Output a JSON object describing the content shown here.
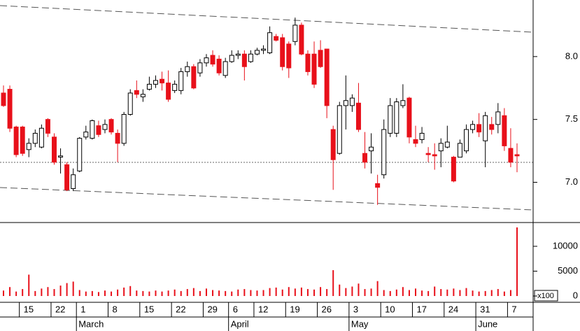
{
  "chart_data": [
    {
      "type": "candlestick",
      "color_up": "#ffffff",
      "color_down": "#e8101a",
      "categories": [
        null,
        null,
        null,
        "15",
        null,
        null,
        null,
        null,
        "22",
        null,
        null,
        null,
        "1",
        null,
        null,
        null,
        null,
        "8",
        null,
        null,
        null,
        null,
        "15",
        null,
        null,
        null,
        null,
        "22",
        null,
        null,
        null,
        null,
        "29",
        null,
        null,
        null,
        "6",
        null,
        null,
        null,
        "12",
        null,
        null,
        null,
        null,
        "19",
        null,
        null,
        null,
        null,
        "26",
        null,
        null,
        null,
        null,
        "3",
        null,
        null,
        null,
        null,
        "10",
        null,
        null,
        null,
        null,
        "17",
        null,
        null,
        null,
        null,
        "24",
        null,
        null,
        null,
        null,
        "31",
        null,
        null,
        null,
        null,
        "7",
        null
      ],
      "months": [
        null,
        null,
        null,
        null,
        null,
        null,
        null,
        null,
        null,
        null,
        null,
        null,
        "March",
        null,
        null,
        null,
        null,
        null,
        null,
        null,
        null,
        null,
        null,
        null,
        null,
        null,
        null,
        null,
        null,
        null,
        null,
        null,
        null,
        null,
        null,
        null,
        "April",
        null,
        null,
        null,
        null,
        null,
        null,
        null,
        null,
        null,
        null,
        null,
        null,
        null,
        null,
        null,
        null,
        null,
        null,
        "May",
        null,
        null,
        null,
        null,
        null,
        null,
        null,
        null,
        null,
        null,
        null,
        null,
        null,
        null,
        null,
        null,
        null,
        null,
        null,
        "June",
        null,
        null,
        null,
        null,
        null,
        null
      ],
      "open": [
        7.71,
        7.74,
        7.44,
        7.44,
        7.26,
        7.31,
        7.28,
        7.5,
        7.36,
        7.2,
        7.14,
        6.95,
        7.09,
        7.36,
        7.35,
        7.45,
        7.42,
        7.5,
        7.39,
        7.31,
        7.54,
        7.73,
        7.68,
        7.74,
        7.78,
        7.82,
        7.79,
        7.73,
        7.73,
        7.88,
        7.92,
        7.87,
        7.95,
        8.01,
        7.98,
        7.85,
        7.96,
        8.01,
        8.02,
        7.96,
        8.02,
        8.05,
        8.03,
        8.16,
        8.15,
        8.1,
        8.12,
        8.25,
        8.02,
        8.02,
        8.05,
        8.06,
        7.42,
        7.23,
        7.61,
        7.61,
        7.63,
        7.23,
        7.25,
        6.99,
        7.06,
        7.39,
        7.39,
        7.61,
        7.67,
        7.34,
        7.34,
        7.23,
        7.22,
        7.25,
        7.28,
        7.2,
        7.2,
        7.25,
        7.42,
        7.46,
        7.33,
        7.46,
        7.46,
        7.53,
        7.27,
        7.22
      ],
      "high": [
        7.77,
        7.77,
        7.45,
        7.45,
        7.35,
        7.42,
        7.46,
        7.51,
        7.39,
        7.27,
        7.16,
        7.11,
        7.36,
        7.45,
        7.5,
        7.49,
        7.5,
        7.51,
        7.42,
        7.56,
        7.74,
        7.81,
        7.74,
        7.84,
        7.85,
        7.88,
        7.89,
        7.81,
        7.91,
        7.96,
        7.94,
        7.98,
        8.02,
        8.05,
        8.01,
        7.99,
        8.05,
        8.05,
        8.05,
        8.05,
        8.07,
        8.09,
        8.24,
        8.18,
        8.18,
        8.12,
        8.31,
        8.27,
        8.05,
        8.12,
        8.13,
        8.06,
        7.45,
        7.64,
        7.85,
        7.7,
        7.79,
        7.4,
        7.39,
        7.06,
        7.5,
        7.67,
        7.67,
        7.78,
        7.68,
        7.45,
        7.44,
        7.28,
        7.31,
        7.35,
        7.45,
        7.21,
        7.34,
        7.46,
        7.49,
        7.55,
        7.56,
        7.52,
        7.63,
        7.59,
        7.43,
        7.31
      ],
      "low": [
        7.6,
        7.4,
        7.2,
        7.21,
        7.2,
        7.28,
        7.27,
        7.36,
        7.14,
        7.07,
        6.93,
        6.93,
        7.08,
        7.34,
        7.34,
        7.36,
        7.39,
        7.38,
        7.16,
        7.29,
        7.53,
        7.67,
        7.64,
        7.73,
        7.75,
        7.73,
        7.64,
        7.71,
        7.7,
        7.84,
        7.74,
        7.84,
        7.92,
        7.92,
        7.85,
        7.83,
        7.95,
        7.98,
        7.81,
        7.95,
        8.01,
        8.02,
        8.02,
        8.12,
        7.89,
        7.83,
        8.09,
        8.01,
        7.85,
        7.75,
        7.91,
        7.51,
        6.94,
        7.22,
        7.42,
        7.56,
        7.4,
        7.11,
        7.07,
        6.82,
        7.03,
        7.36,
        7.36,
        7.59,
        7.31,
        7.28,
        7.31,
        7.16,
        7.1,
        7.12,
        7.27,
        7.0,
        7.2,
        7.23,
        7.39,
        7.36,
        7.12,
        7.38,
        7.39,
        7.25,
        7.12,
        7.08
      ],
      "close": [
        7.61,
        7.43,
        7.22,
        7.23,
        7.31,
        7.39,
        7.43,
        7.39,
        7.16,
        7.21,
        6.94,
        7.06,
        7.35,
        7.4,
        7.49,
        7.38,
        7.46,
        7.4,
        7.31,
        7.54,
        7.71,
        7.7,
        7.7,
        7.78,
        7.81,
        7.79,
        7.66,
        7.78,
        7.88,
        7.92,
        7.75,
        7.95,
        7.99,
        7.94,
        7.87,
        7.96,
        8.01,
        8.02,
        7.92,
        8.02,
        8.05,
        8.06,
        8.19,
        8.13,
        7.92,
        7.91,
        8.25,
        8.02,
        7.88,
        7.78,
        7.92,
        7.61,
        7.18,
        7.61,
        7.65,
        7.67,
        7.42,
        7.16,
        7.28,
        6.96,
        7.42,
        7.61,
        7.64,
        7.65,
        7.36,
        7.31,
        7.39,
        7.22,
        7.21,
        7.31,
        7.32,
        7.01,
        7.31,
        7.42,
        7.46,
        7.4,
        7.53,
        7.42,
        7.56,
        7.29,
        7.16,
        7.21
      ],
      "ylim": [
        6.68,
        8.45
      ],
      "yticks": [
        {
          "value": 7,
          "label": "7.0"
        },
        {
          "value": 7.5,
          "label": "7.5"
        },
        {
          "value": 8,
          "label": "8.0"
        }
      ]
    },
    {
      "type": "bar",
      "color": "#e8101a",
      "ylabel": "x100",
      "values": [
        1100,
        1800,
        900,
        1400,
        4300,
        1000,
        1500,
        1800,
        1400,
        2100,
        2600,
        2900,
        1200,
        900,
        1000,
        800,
        1100,
        900,
        1300,
        1700,
        2000,
        1100,
        1000,
        900,
        1100,
        900,
        1100,
        1300,
        1000,
        1400,
        1600,
        1000,
        1500,
        1200,
        1100,
        1000,
        900,
        1300,
        1400,
        1200,
        1100,
        1200,
        1600,
        1700,
        1300,
        1800,
        1500,
        1700,
        1400,
        1300,
        1800,
        1400,
        5200,
        2300,
        1600,
        1900,
        2500,
        1400,
        1500,
        3000,
        1200,
        1000,
        1300,
        1800,
        1200,
        1500,
        1100,
        1000,
        1900,
        1400,
        1300,
        1500,
        1200,
        1600,
        1100,
        900,
        1000,
        1200,
        1400,
        900,
        1200,
        13800
      ],
      "ylim": [
        0,
        14500
      ],
      "yticks": [
        0,
        5000,
        10000
      ]
    }
  ]
}
